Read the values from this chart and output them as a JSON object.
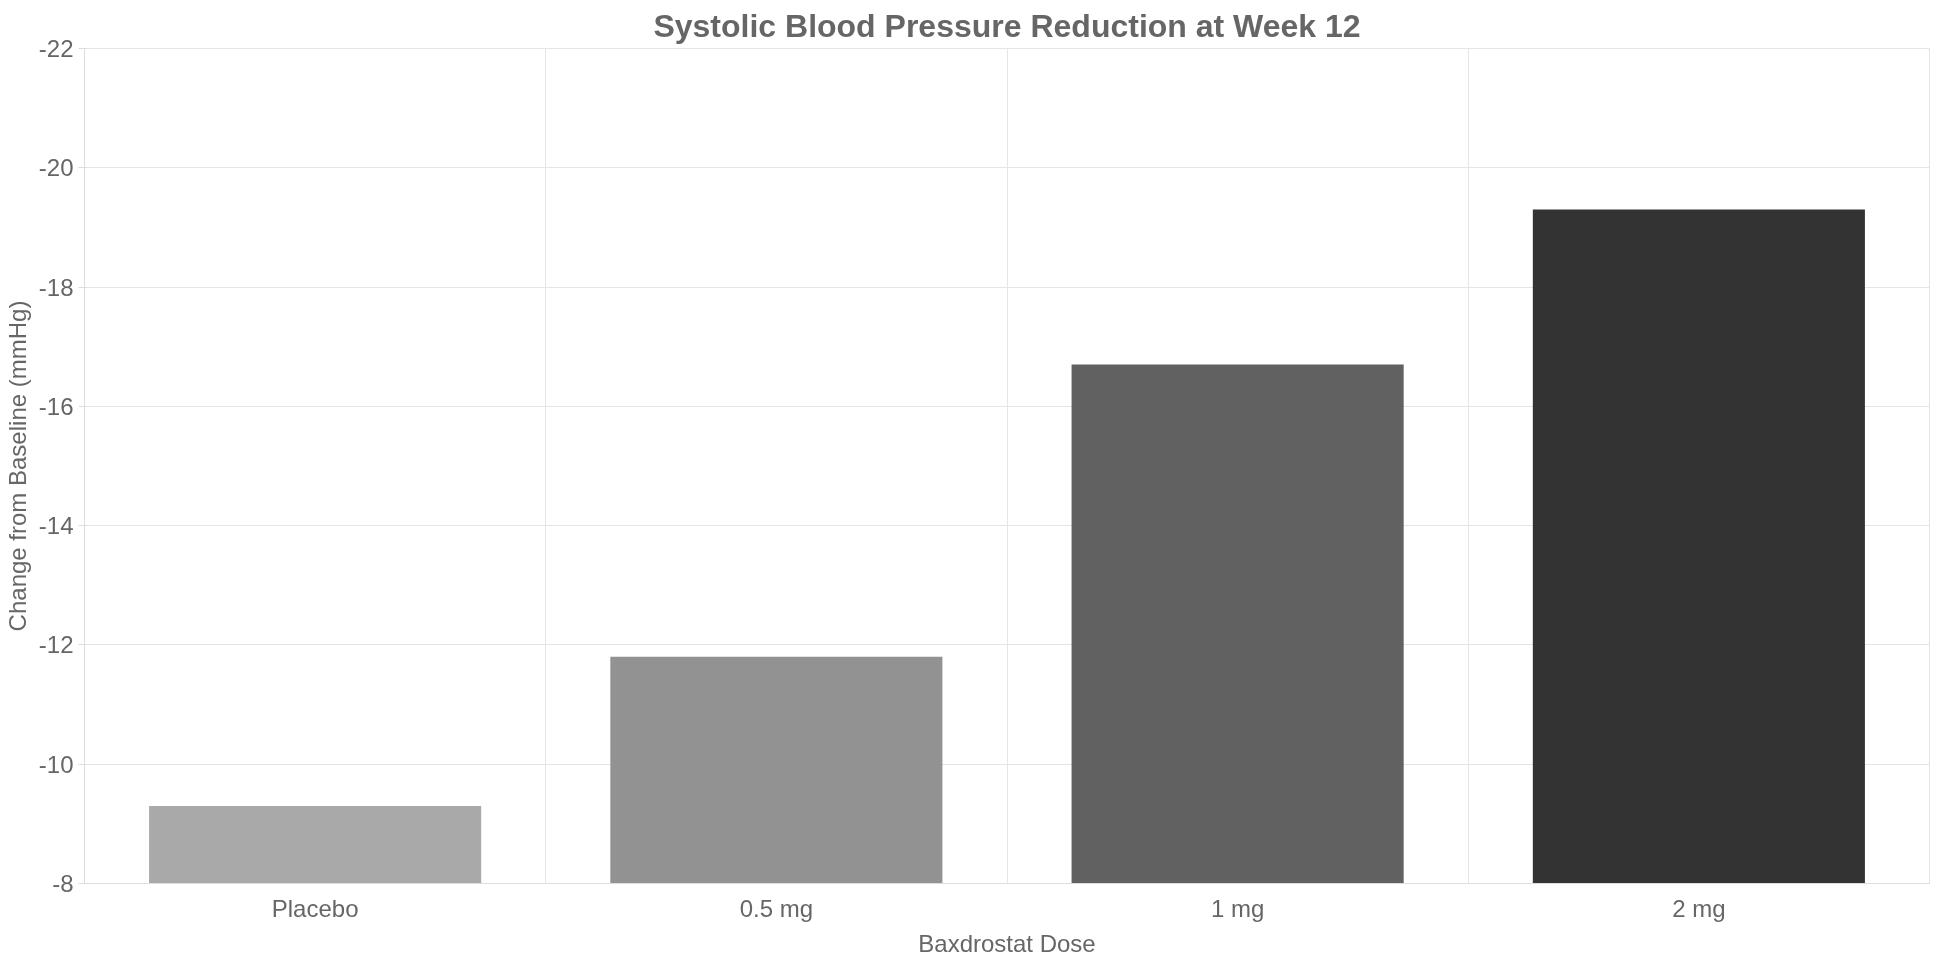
{
  "chart_data": {
    "type": "bar",
    "title": "Systolic Blood Pressure Reduction at Week 12",
    "xlabel": "Baxdrostat Dose",
    "ylabel": "Change from Baseline (mmHg)",
    "categories": [
      "Placebo",
      "0.5 mg",
      "1 mg",
      "2 mg"
    ],
    "values": [
      -9.3,
      -11.8,
      -16.7,
      -19.3
    ],
    "colors": [
      "#a9a9a9",
      "#929292",
      "#616161",
      "#333333"
    ],
    "ylim": [
      -8,
      -22
    ],
    "yticks": [
      -8,
      -10,
      -12,
      -14,
      -16,
      -18,
      -20,
      -22
    ],
    "grid": true
  }
}
